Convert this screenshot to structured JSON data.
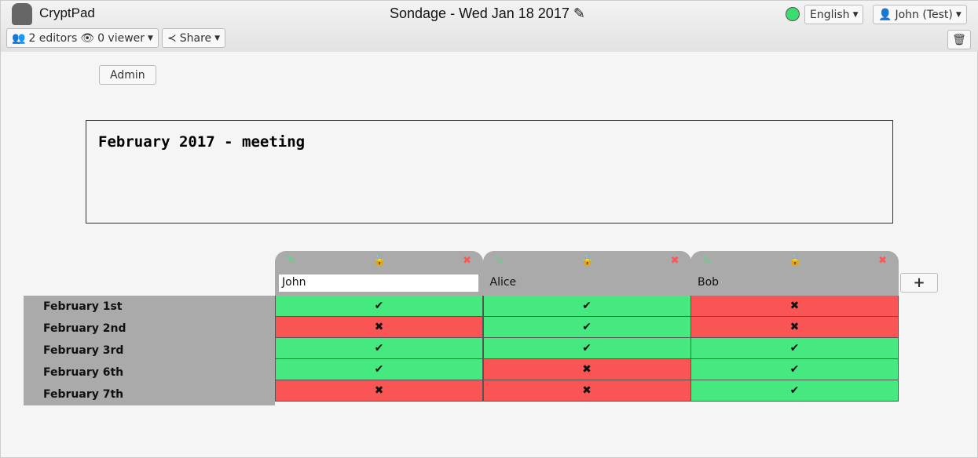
{
  "app": {
    "name": "CryptPad",
    "title": "Sondage - Wed Jan 18 2017",
    "title_icon": "pencil-icon"
  },
  "toolbar": {
    "editors": "2 editors",
    "viewers": "0 viewer",
    "share": "Share",
    "language": "English",
    "user": "John (Test)",
    "status_color": "#3ddc6f"
  },
  "admin_label": "Admin",
  "description": "February 2017 - meeting",
  "colors": {
    "yes": "#46e880",
    "no": "#fa5555"
  },
  "poll": {
    "rows": [
      "February 1st",
      "February 2nd",
      "February 3rd",
      "February 6th",
      "February 7th"
    ],
    "columns": [
      {
        "name": "John",
        "editing": true,
        "locked": false,
        "votes": [
          true,
          false,
          true,
          true,
          false
        ]
      },
      {
        "name": "Alice",
        "editing": false,
        "locked": true,
        "votes": [
          true,
          true,
          true,
          false,
          false
        ]
      },
      {
        "name": "Bob",
        "editing": false,
        "locked": true,
        "votes": [
          false,
          false,
          true,
          true,
          true
        ]
      }
    ],
    "yes_mark": "✔",
    "no_mark": "✖",
    "add_label": "+"
  }
}
